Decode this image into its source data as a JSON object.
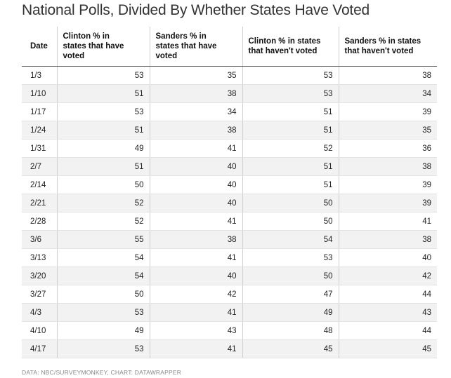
{
  "title": "National Polls, Divided By Whether States Have Voted",
  "footer": "DATA: NBC/SURVEYMONKEY, CHART: DATAWRAPPER",
  "chart_data": {
    "type": "table",
    "title": "National Polls, Divided By Whether States Have Voted",
    "columns": [
      "Date",
      "Clinton % in states that have voted",
      "Sanders % in states that have voted",
      "Clinton % in states that haven't voted",
      "Sanders % in states that haven't voted"
    ],
    "rows": [
      [
        "1/3",
        53,
        35,
        53,
        38
      ],
      [
        "1/10",
        51,
        38,
        53,
        34
      ],
      [
        "1/17",
        53,
        34,
        51,
        39
      ],
      [
        "1/24",
        51,
        38,
        51,
        35
      ],
      [
        "1/31",
        49,
        41,
        52,
        36
      ],
      [
        "2/7",
        51,
        40,
        51,
        38
      ],
      [
        "2/14",
        50,
        40,
        51,
        39
      ],
      [
        "2/21",
        52,
        40,
        50,
        39
      ],
      [
        "2/28",
        52,
        41,
        50,
        41
      ],
      [
        "3/6",
        55,
        38,
        54,
        38
      ],
      [
        "3/13",
        54,
        41,
        53,
        40
      ],
      [
        "3/20",
        54,
        40,
        50,
        42
      ],
      [
        "3/27",
        50,
        42,
        47,
        44
      ],
      [
        "4/3",
        53,
        41,
        49,
        43
      ],
      [
        "4/10",
        49,
        43,
        48,
        44
      ],
      [
        "4/17",
        53,
        41,
        45,
        45
      ]
    ]
  }
}
